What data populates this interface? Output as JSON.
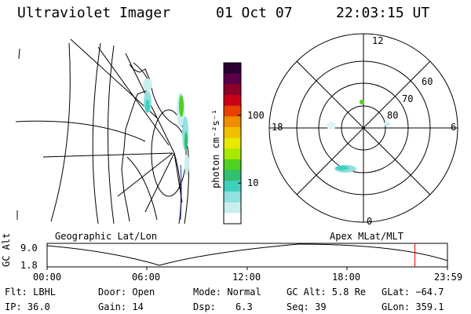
{
  "header": {
    "instrument": "Ultraviolet Imager",
    "date": "01 Oct 07",
    "time": "22:03:15 UT"
  },
  "colorbar": {
    "label": "photon cm⁻²s⁻¹",
    "ticks": [
      {
        "value": 100,
        "label": "100"
      },
      {
        "value": 10,
        "label": "10"
      }
    ],
    "range": [
      2.5,
      600
    ],
    "scale": "log",
    "colors": [
      "#2a0033",
      "#5a004a",
      "#900028",
      "#c80018",
      "#e84000",
      "#f08c00",
      "#f0c000",
      "#e8e800",
      "#a8e800",
      "#50d020",
      "#30c070",
      "#40d0c0",
      "#90e0e0",
      "#c8eeee",
      "#ffffff"
    ]
  },
  "polar_plot": {
    "mlt_labels": {
      "top": "12",
      "left": "18",
      "right": "6",
      "bottom": "0"
    },
    "lat_labels": [
      "60",
      "70",
      "80"
    ]
  },
  "orbit_plot": {
    "ylabel": "GC Alt",
    "yticks": [
      "9.0",
      "1.8"
    ],
    "xticks": [
      "00:00",
      "06:00",
      "12:00",
      "18:00",
      "23:59"
    ],
    "left_title": "Geographic Lat/Lon",
    "right_title": "Apex MLat/MLT",
    "marker_color": "#e00000",
    "marker_time_hours": 22.05
  },
  "status": {
    "filter": "Flt: LBHL",
    "door": "Door: Open",
    "mode": "Mode: Normal",
    "gc_alt": "GC Alt: 5.8 Re",
    "glat": "GLat: −64.7",
    "ip": "IP: 36.0",
    "gain": "Gain: 14",
    "dsp_label": "Dsp:",
    "dsp_value": "6.3",
    "seq": "Seq: 39",
    "glon": "GLon: 359.1"
  }
}
